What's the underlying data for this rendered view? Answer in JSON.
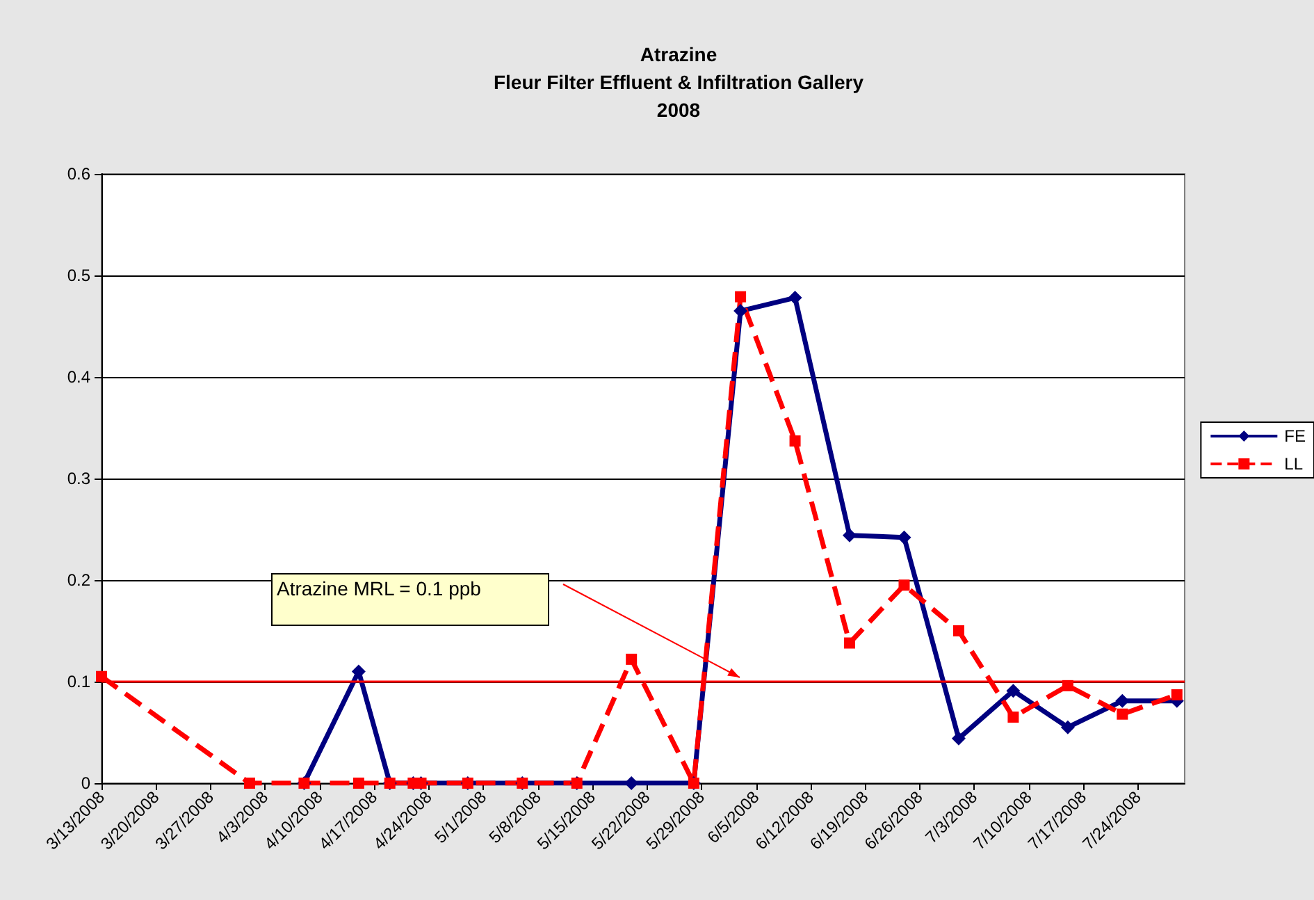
{
  "chart_data": {
    "type": "line",
    "title": "Atrazine\nFleur Filter Effluent & Infiltration Gallery\n2008",
    "series": [
      {
        "name": "FE",
        "color": "#000080",
        "marker": "diamond",
        "line_style": "solid",
        "x": [
          "2008-04-08",
          "2008-04-15",
          "2008-04-19",
          "2008-04-22",
          "2008-04-23",
          "2008-04-29",
          "2008-05-06",
          "2008-05-13",
          "2008-05-20",
          "2008-05-28",
          "2008-06-03",
          "2008-06-10",
          "2008-06-17",
          "2008-06-24",
          "2008-07-01",
          "2008-07-08",
          "2008-07-15",
          "2008-07-22",
          "2008-07-29"
        ],
        "values": [
          0,
          0.11,
          0,
          0,
          0,
          0,
          0,
          0,
          0,
          0,
          0.465,
          0.478,
          0.244,
          0.242,
          0.044,
          0.091,
          0.055,
          0.081,
          0.081
        ]
      },
      {
        "name": "LL",
        "color": "#ff0000",
        "marker": "square",
        "line_style": "dashed",
        "x": [
          "2008-03-13",
          "2008-04-01",
          "2008-04-08",
          "2008-04-15",
          "2008-04-19",
          "2008-04-22",
          "2008-04-23",
          "2008-04-29",
          "2008-05-06",
          "2008-05-13",
          "2008-05-20",
          "2008-05-28",
          "2008-06-03",
          "2008-06-10",
          "2008-06-17",
          "2008-06-24",
          "2008-07-01",
          "2008-07-08",
          "2008-07-15",
          "2008-07-22",
          "2008-07-29"
        ],
        "values": [
          0.105,
          0,
          0,
          0,
          0,
          0,
          0,
          0,
          0,
          0,
          0.122,
          0,
          0.479,
          0.337,
          0.138,
          0.195,
          0.15,
          0.065,
          0.096,
          0.068,
          0.087
        ]
      }
    ],
    "xlim": [
      "2008-03-13",
      "2008-07-30"
    ],
    "xticks": [
      {
        "value": "2008-03-13",
        "label": "3/13/2008"
      },
      {
        "value": "2008-03-20",
        "label": "3/20/2008"
      },
      {
        "value": "2008-03-27",
        "label": "3/27/2008"
      },
      {
        "value": "2008-04-03",
        "label": "4/3/2008"
      },
      {
        "value": "2008-04-10",
        "label": "4/10/2008"
      },
      {
        "value": "2008-04-17",
        "label": "4/17/2008"
      },
      {
        "value": "2008-04-24",
        "label": "4/24/2008"
      },
      {
        "value": "2008-05-01",
        "label": "5/1/2008"
      },
      {
        "value": "2008-05-08",
        "label": "5/8/2008"
      },
      {
        "value": "2008-05-15",
        "label": "5/15/2008"
      },
      {
        "value": "2008-05-22",
        "label": "5/22/2008"
      },
      {
        "value": "2008-05-29",
        "label": "5/29/2008"
      },
      {
        "value": "2008-06-05",
        "label": "6/5/2008"
      },
      {
        "value": "2008-06-12",
        "label": "6/12/2008"
      },
      {
        "value": "2008-06-19",
        "label": "6/19/2008"
      },
      {
        "value": "2008-06-26",
        "label": "6/26/2008"
      },
      {
        "value": "2008-07-03",
        "label": "7/3/2008"
      },
      {
        "value": "2008-07-10",
        "label": "7/10/2008"
      },
      {
        "value": "2008-07-17",
        "label": "7/17/2008"
      },
      {
        "value": "2008-07-24",
        "label": "7/24/2008"
      }
    ],
    "ylim": [
      0,
      0.6
    ],
    "yticks": [
      0,
      0.1,
      0.2,
      0.3,
      0.4,
      0.5,
      0.6
    ],
    "ref_lines": [
      {
        "axis": "y",
        "value": 0.1,
        "color": "#ff0000"
      }
    ],
    "annotations": [
      "Atrazine MRL = 0.1 ppb"
    ],
    "grid": "y",
    "legend": "right"
  }
}
